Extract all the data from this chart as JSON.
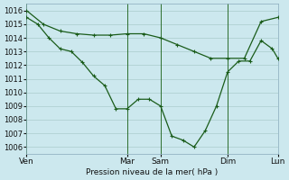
{
  "background_color": "#cce8ee",
  "grid_color": "#aacccc",
  "line_color": "#1a5c1a",
  "marker_color": "#1a5c1a",
  "xlabel": "Pression niveau de la mer( hPa )",
  "ylim": [
    1005.5,
    1016.5
  ],
  "yticks": [
    1006,
    1007,
    1008,
    1009,
    1010,
    1011,
    1012,
    1013,
    1014,
    1015,
    1016
  ],
  "xtick_labels": [
    "Ven",
    "Mar",
    "Sam",
    "Dim",
    "Lun"
  ],
  "xtick_positions": [
    0,
    36,
    48,
    72,
    90
  ],
  "xlim": [
    0,
    90
  ],
  "line1_x": [
    0,
    6,
    12,
    18,
    24,
    30,
    36,
    42,
    48,
    54,
    60,
    66,
    72,
    78,
    84,
    90
  ],
  "line1_y": [
    1016.0,
    1015.0,
    1014.5,
    1014.3,
    1014.2,
    1014.2,
    1014.3,
    1014.3,
    1014.0,
    1013.5,
    1013.0,
    1012.5,
    1012.5,
    1012.5,
    1015.2,
    1015.5
  ],
  "line2_x": [
    0,
    4,
    8,
    12,
    16,
    20,
    24,
    28,
    32,
    36,
    40,
    44,
    48,
    52,
    56,
    60,
    64,
    68,
    72,
    76,
    80,
    84,
    88,
    90
  ],
  "line2_y": [
    1015.5,
    1015.0,
    1014.0,
    1013.2,
    1013.0,
    1012.2,
    1011.2,
    1010.5,
    1008.8,
    1008.8,
    1009.5,
    1009.5,
    1009.0,
    1006.8,
    1006.5,
    1006.0,
    1007.2,
    1009.0,
    1011.5,
    1012.3,
    1012.3,
    1013.8,
    1013.2,
    1012.5
  ],
  "vline_positions": [
    0,
    36,
    48,
    72,
    90
  ],
  "vline_color": "#2d6e2d",
  "marker_size": 2.5,
  "linewidth": 0.9
}
